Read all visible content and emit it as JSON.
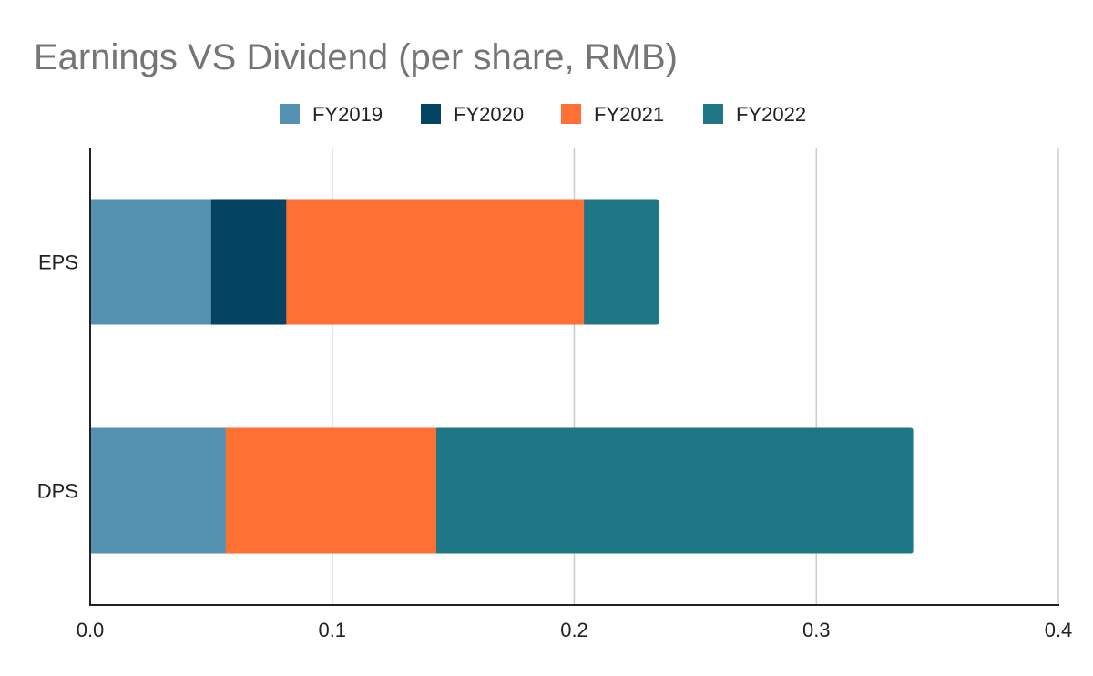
{
  "chart_data": {
    "type": "bar",
    "orientation": "horizontal",
    "stacked": true,
    "title": "Earnings VS Dividend (per share, RMB)",
    "xlabel": "",
    "ylabel": "",
    "categories": [
      "EPS",
      "DPS"
    ],
    "series": [
      {
        "name": "FY2019",
        "color": "#5591b0",
        "values": [
          0.05,
          0.056
        ]
      },
      {
        "name": "FY2020",
        "color": "#044462",
        "values": [
          0.031,
          0.0
        ]
      },
      {
        "name": "FY2021",
        "color": "#fe7033",
        "values": [
          0.123,
          0.087
        ]
      },
      {
        "name": "FY2022",
        "color": "#1f7686",
        "values": [
          0.031,
          0.197
        ]
      }
    ],
    "xlim": [
      0,
      0.4
    ],
    "xticks": [
      "0.0",
      "0.1",
      "0.2",
      "0.3",
      "0.4"
    ],
    "xtick_values": [
      0,
      0.1,
      0.2,
      0.3,
      0.4
    ],
    "grid": true,
    "legend_position": "top"
  }
}
